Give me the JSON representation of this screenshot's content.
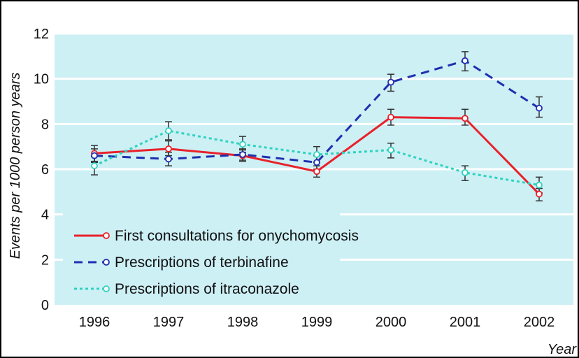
{
  "chart_data": {
    "type": "line",
    "x": [
      "1996",
      "1997",
      "1998",
      "1999",
      "2000",
      "2001",
      "2002"
    ],
    "xlabel": "Year",
    "ylabel": "Events per 1000 person years",
    "ylim": [
      0,
      12
    ],
    "yticks": [
      "0",
      "2",
      "4",
      "6",
      "8",
      "10",
      "12"
    ],
    "grid": true,
    "legend_position": "bottom-left",
    "background_color": "#cdf0f5",
    "series": [
      {
        "name": "First consultations for onychomycosis",
        "color": "#e8222b",
        "line_style": "solid",
        "values": [
          6.7,
          6.9,
          6.6,
          5.9,
          8.3,
          8.25,
          4.9
        ],
        "error_low": [
          6.35,
          6.6,
          6.35,
          5.65,
          7.95,
          7.95,
          4.6
        ],
        "error_high": [
          7.05,
          7.25,
          6.85,
          6.15,
          8.65,
          8.65,
          5.15
        ]
      },
      {
        "name": "Prescriptions of terbinafine",
        "color": "#1f2fb0",
        "line_style": "dashed",
        "values": [
          6.6,
          6.45,
          6.65,
          6.3,
          9.85,
          10.8,
          8.7
        ],
        "error_low": [
          6.3,
          6.15,
          6.4,
          6.0,
          9.45,
          10.35,
          8.3
        ],
        "error_high": [
          6.9,
          6.75,
          6.9,
          6.6,
          10.2,
          11.2,
          9.2
        ]
      },
      {
        "name": "Prescriptions of itraconazole",
        "color": "#2fd3bf",
        "line_style": "dotted",
        "values": [
          6.15,
          7.7,
          7.1,
          6.65,
          6.85,
          5.85,
          5.3
        ],
        "error_low": [
          5.75,
          7.3,
          6.75,
          6.3,
          6.5,
          5.5,
          4.95
        ],
        "error_high": [
          6.55,
          8.1,
          7.45,
          7.0,
          7.15,
          6.15,
          5.65
        ]
      }
    ]
  }
}
